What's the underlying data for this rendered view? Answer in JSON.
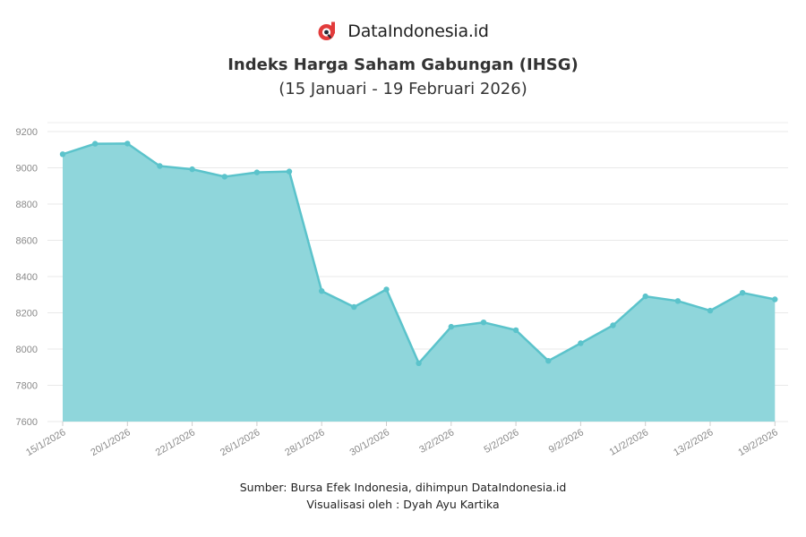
{
  "brand": {
    "name": "DataIndonesia.id",
    "logo_icon": "dataindonesia-logo-icon",
    "logo_color": "#e23b3b"
  },
  "header": {
    "title": "Indeks Harga Saham Gabungan (IHSG)",
    "subtitle": "(15 Januari - 19 Februari 2026)"
  },
  "footer": {
    "source": "Sumber: Bursa Efek Indonesia, dihimpun DataIndonesia.id",
    "credit": "Visualisasi oleh : Dyah Ayu Kartika"
  },
  "chart_data": {
    "type": "area",
    "x": [
      "15/1/2026",
      "16/1/2026",
      "20/1/2026",
      "21/1/2026",
      "22/1/2026",
      "23/1/2026",
      "26/1/2026",
      "27/1/2026",
      "28/1/2026",
      "29/1/2026",
      "30/1/2026",
      "2/2/2026",
      "3/2/2026",
      "4/2/2026",
      "5/2/2026",
      "6/2/2026",
      "9/2/2026",
      "10/2/2026",
      "11/2/2026",
      "12/2/2026",
      "13/2/2026",
      "18/2/2026",
      "19/2/2026"
    ],
    "values": [
      9075,
      9133,
      9134,
      9010,
      8992,
      8951,
      8975,
      8980,
      8320,
      8232,
      8329,
      7922,
      8123,
      8147,
      8104,
      7935,
      8032,
      8131,
      8291,
      8265,
      8212,
      8310,
      8274
    ],
    "x_tick_labels": [
      "15/1/2026",
      "20/1/2026",
      "22/1/2026",
      "26/1/2026",
      "28/1/2026",
      "30/1/2026",
      "3/2/2026",
      "5/2/2026",
      "9/2/2026",
      "11/2/2026",
      "13/2/2026",
      "19/2/2026"
    ],
    "y_ticks": [
      7600,
      7800,
      8000,
      8200,
      8400,
      8600,
      8800,
      9000,
      9200
    ],
    "ylim": [
      7600,
      9250
    ],
    "grid": true,
    "fill_color": "#8fd6db",
    "line_color": "#5bc3cb",
    "title": "Indeks Harga Saham Gabungan (IHSG)",
    "xlabel": "",
    "ylabel": ""
  }
}
